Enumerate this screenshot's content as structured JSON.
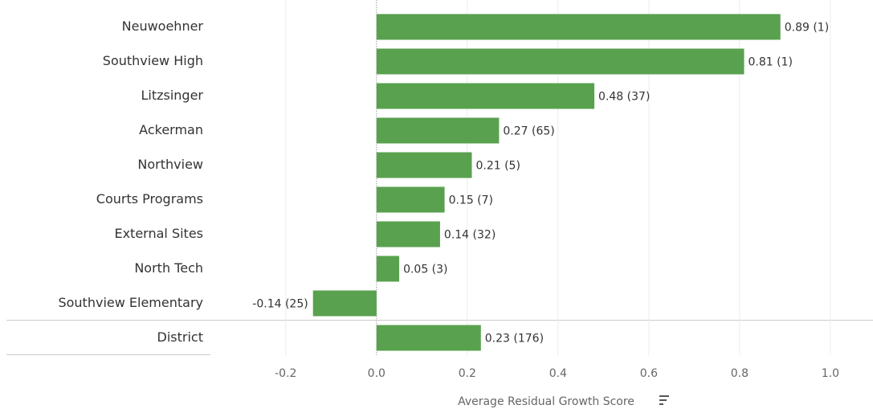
{
  "chart_data": {
    "type": "bar",
    "orientation": "horizontal",
    "categories": [
      "Neuwoehner",
      "Southview High",
      "Litzsinger",
      "Ackerman",
      "Northview",
      "Courts Programs",
      "External Sites",
      "North Tech",
      "Southview Elementary",
      "District"
    ],
    "values": [
      0.89,
      0.81,
      0.48,
      0.27,
      0.21,
      0.15,
      0.14,
      0.05,
      -0.14,
      0.23
    ],
    "value_labels": [
      "0.89 (1)",
      "0.81 (1)",
      "0.48 (37)",
      "0.27 (65)",
      "0.21 (5)",
      "0.15 (7)",
      "0.14 (32)",
      "0.05 (3)",
      "-0.14 (25)",
      "0.23 (176)"
    ],
    "color": "#59a14f",
    "xlabel": "Average Residual Growth Score",
    "xlim": [
      -0.366,
      1.094
    ],
    "xticks": [
      -0.2,
      {
        "value": 0,
        "label": "0.0"
      },
      0.2,
      0.4,
      0.6,
      0.8,
      {
        "value": 1,
        "label": "1.0"
      }
    ],
    "grid": true
  }
}
